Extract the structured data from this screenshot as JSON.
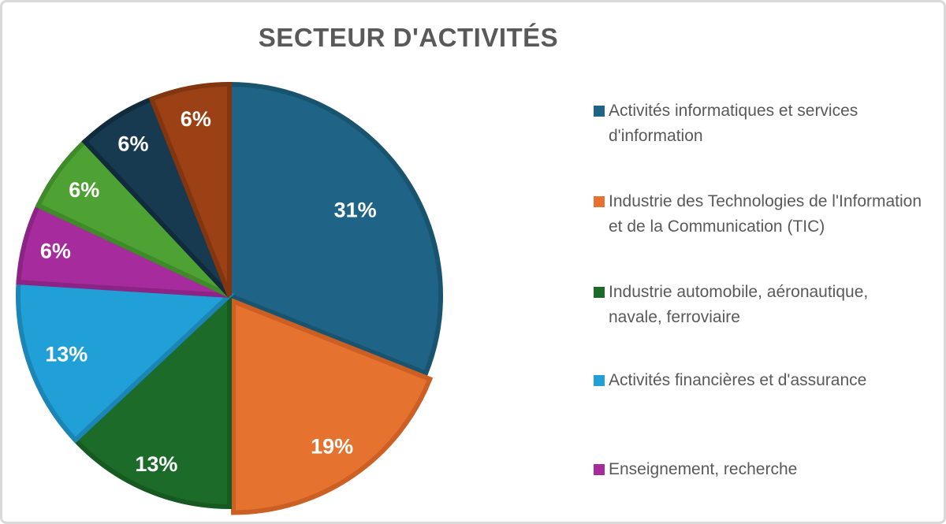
{
  "title": "SECTEUR D'ACTIVITÉS",
  "chart_data": {
    "type": "pie",
    "title": "SECTEUR D'ACTIVITÉS",
    "direction": "clockwise",
    "start_angle_deg": 0,
    "legend_position": "right",
    "data_labels": "percent-inside-white-bold",
    "slices": [
      {
        "legend_label": "Activités informatiques et services d'information",
        "value": 31,
        "pct_label": "31%",
        "color": "#1F6386",
        "border": "#19546F",
        "exploded": false
      },
      {
        "legend_label": "Industrie des Technologies de l'Information et de la Communication (TIC)",
        "value": 19,
        "pct_label": "19%",
        "color": "#E5722F",
        "border": "#CC5F23",
        "exploded": true
      },
      {
        "legend_label": "Industrie automobile, aéronautique, navale, ferroviaire",
        "value": 13,
        "pct_label": "13%",
        "color": "#1C6B29",
        "border": "#165A21",
        "exploded": false
      },
      {
        "legend_label": "Activités financières et d'assurance",
        "value": 13,
        "pct_label": "13%",
        "color": "#219FD7",
        "border": "#1B85B6",
        "exploded": false
      },
      {
        "legend_label": "Enseignement, recherche",
        "value": 6,
        "pct_label": "6%",
        "color": "#A62C9E",
        "border": "#8B2484",
        "exploded": false
      },
      {
        "legend_label": "",
        "value": 6,
        "pct_label": "6%",
        "color": "#4EA233",
        "border": "#3F8A29",
        "exploded": false
      },
      {
        "legend_label": "",
        "value": 6,
        "pct_label": "6%",
        "color": "#173A50",
        "border": "#102B3C",
        "exploded": false
      },
      {
        "legend_label": "",
        "value": 6,
        "pct_label": "6%",
        "color": "#9C4115",
        "border": "#823610",
        "exploded": false
      }
    ]
  },
  "legend": {
    "items": [
      {
        "label": "Activités informatiques et services d'information",
        "color": "#1F6386"
      },
      {
        "label": "Industrie des Technologies de l'Information et de la Communication (TIC)",
        "color": "#E5722F"
      },
      {
        "label": "Industrie automobile, aéronautique, navale, ferroviaire",
        "color": "#1C6B29"
      },
      {
        "label": "Activités financières et d'assurance",
        "color": "#219FD7"
      },
      {
        "label": "Enseignement, recherche",
        "color": "#A62C9E"
      }
    ]
  },
  "colors": {
    "title_text": "#595959",
    "legend_text": "#595959",
    "data_label_text": "#FFFFFF",
    "frame_border": "#D9D9D9",
    "background": "#FFFFFF"
  }
}
